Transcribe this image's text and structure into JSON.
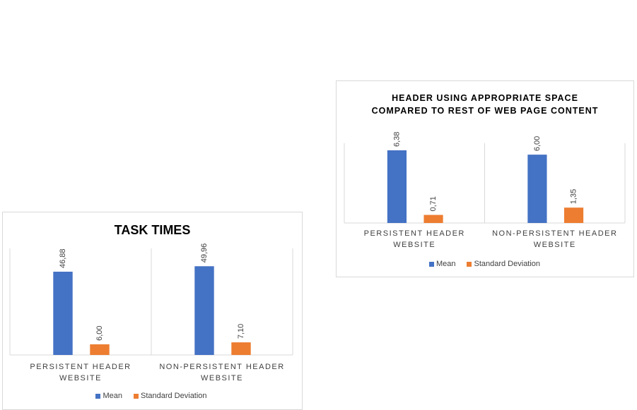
{
  "chart_data": [
    {
      "type": "bar",
      "title": "TASK TIMES",
      "categories": [
        "PERSISTENT HEADER WEBSITE",
        "NON-PERSISTENT HEADER WEBSITE"
      ],
      "series": [
        {
          "name": "Mean",
          "color": "#4472c4",
          "values": [
            46.88,
            49.96
          ],
          "value_labels": [
            "46,88",
            "49,96"
          ]
        },
        {
          "name": "Standard Deviation",
          "color": "#ed7d31",
          "values": [
            6.0,
            7.1
          ],
          "value_labels": [
            "6,00",
            "7,10"
          ]
        }
      ],
      "ylim": [
        0,
        60
      ]
    },
    {
      "type": "bar",
      "title": "HEADER USING APPROPRIATE SPACE COMPARED TO REST OF WEB PAGE CONTENT",
      "categories": [
        "PERSISTENT HEADER WEBSITE",
        "NON-PERSISTENT HEADER WEBSITE"
      ],
      "series": [
        {
          "name": "Mean",
          "color": "#4472c4",
          "values": [
            6.38,
            6.0
          ],
          "value_labels": [
            "6,38",
            "6,00"
          ]
        },
        {
          "name": "Standard Deviation",
          "color": "#ed7d31",
          "values": [
            0.71,
            1.35
          ],
          "value_labels": [
            "0,71",
            "1,35"
          ]
        }
      ],
      "ylim": [
        0,
        7
      ]
    }
  ]
}
